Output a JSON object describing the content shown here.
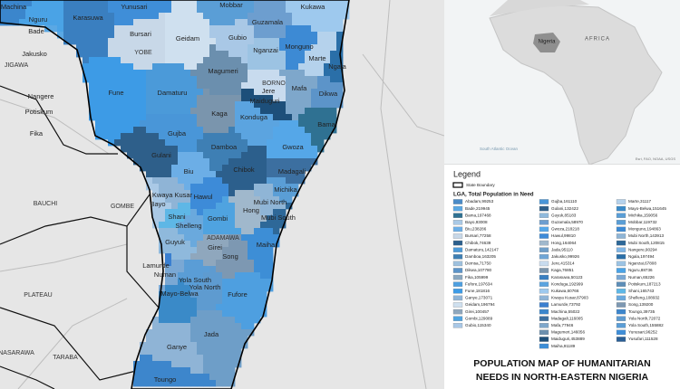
{
  "map": {
    "lga_labels": [
      "Machina",
      "Yunusari",
      "Mobbar",
      "Kukawa",
      "Nguru",
      "Karasuwa",
      "Bade",
      "Guzamala",
      "Bursari",
      "Geidam",
      "Gubio",
      "Jakusko",
      "Nganzai",
      "Monguno",
      "Marte",
      "Ngala",
      "Magumeri",
      "Jere",
      "Mafa",
      "Maiduguri",
      "Nangere",
      "Fune",
      "Damaturu",
      "Dikwa",
      "Potiskum",
      "Kaga",
      "Konduga",
      "Bama",
      "Fika",
      "Gujba",
      "Damboa",
      "Gwoza",
      "Gulani",
      "Chibok",
      "Biu",
      "Madagali",
      "Kwaya Kusar",
      "Michika",
      "Bayo",
      "Hawul",
      "Shani",
      "Gombi",
      "Hong",
      "Mubi North",
      "Mubi South",
      "Shelleng",
      "Guyuk",
      "Maiha",
      "Girei",
      "Song",
      "Lamurde",
      "Numan",
      "Yola South",
      "Yola North",
      "Mayo-Belwa",
      "Fufore",
      "Jada",
      "Ganye",
      "Toungo"
    ],
    "state_labels": [
      "YOBE",
      "JIGAWA",
      "BORNO",
      "BAUCHI",
      "GOMBE",
      "ADAMAWA",
      "PLATEAU",
      "NASARAWA",
      "TARABA"
    ]
  },
  "inset": {
    "country": "Nigeria",
    "continent": "AFRICA",
    "ocean": "South Atlantic Ocean",
    "credit": "Esri, FAO, NOAA, USGS"
  },
  "legend": {
    "title": "Legend",
    "boundary": "State Boundary",
    "subtitle": "LGA, Total Population in Need",
    "columns": [
      [
        {
          "label": "Abadam,99253",
          "color": "#4a8bc8"
        },
        {
          "label": "Bade,219945",
          "color": "#5aa8e4"
        },
        {
          "label": "Bama,197468",
          "color": "#2f7192"
        },
        {
          "label": "Bayo,93008",
          "color": "#aac9e6"
        },
        {
          "label": "Biu,238286",
          "color": "#6caee6"
        },
        {
          "label": "Bursari,77258",
          "color": "#c8d8e8"
        },
        {
          "label": "Chibok,74639",
          "color": "#2c5f8c"
        },
        {
          "label": "Damaturu,142147",
          "color": "#4b9ad9"
        },
        {
          "label": "Damboa,163205",
          "color": "#3e7fb4"
        },
        {
          "label": "Demsa,71750",
          "color": "#9ec0dd"
        },
        {
          "label": "Dikwa,107780",
          "color": "#5c94c9"
        },
        {
          "label": "Fika,105999",
          "color": "#8aa8c0"
        },
        {
          "label": "Fufore,197634",
          "color": "#4e9fe0"
        },
        {
          "label": "Fune,181816",
          "color": "#3d9be6"
        },
        {
          "label": "Ganye,173071",
          "color": "#8fb4d6"
        },
        {
          "label": "Geidam,196794",
          "color": "#cfe0ef"
        },
        {
          "label": "Girei,100457",
          "color": "#8fa7bd"
        },
        {
          "label": "Gombi,129089",
          "color": "#4fa3e0"
        },
        {
          "label": "Gubio,115340",
          "color": "#a9c8e6"
        }
      ],
      [
        {
          "label": "Gujba,161110",
          "color": "#4996d8"
        },
        {
          "label": "Gulani,132422",
          "color": "#2e5f8a"
        },
        {
          "label": "Guyuk,85183",
          "color": "#8fb9dc"
        },
        {
          "label": "Guzamala,58970",
          "color": "#6d9ecf"
        },
        {
          "label": "Gwoza,218218",
          "color": "#55a7e8"
        },
        {
          "label": "Hawul,99810",
          "color": "#3d8bd8"
        },
        {
          "label": "Hong,164064",
          "color": "#a0b8cc"
        },
        {
          "label": "Jada,95110",
          "color": "#6e9ec8"
        },
        {
          "label": "Jakusko,99926",
          "color": "#6fa6d6"
        },
        {
          "label": "Jere,415314",
          "color": "#c8dbee"
        },
        {
          "label": "Kaga,76851",
          "color": "#7a95ad"
        },
        {
          "label": "Karasuwa,50123",
          "color": "#3a7fc0"
        },
        {
          "label": "Konduga,192999",
          "color": "#5ba4e0"
        },
        {
          "label": "Kukawa,60766",
          "color": "#9ec9ee"
        },
        {
          "label": "Kwaya Kusar,87903",
          "color": "#8fb4d6"
        },
        {
          "label": "Lamurde,73792",
          "color": "#3a7fd0"
        },
        {
          "label": "Machina,55022",
          "color": "#3b86cc"
        },
        {
          "label": "Madagali,116005",
          "color": "#3c6fa0"
        },
        {
          "label": "Mafa,77946",
          "color": "#7ea7cb"
        },
        {
          "label": "Magumeri,146056",
          "color": "#6b8fae"
        },
        {
          "label": "Maiduguri,453889",
          "color": "#1d4f7a"
        },
        {
          "label": "Maiha,91189",
          "color": "#3d8ed6"
        }
      ],
      [
        {
          "label": "Marte,31117",
          "color": "#b5d2ec"
        },
        {
          "label": "Mayo-Belwa,151645",
          "color": "#3a8ac8"
        },
        {
          "label": "Michika,159056",
          "color": "#5a9ed6"
        },
        {
          "label": "Mobbar,119732",
          "color": "#5a9ed6"
        },
        {
          "label": "Monguno,194863",
          "color": "#3d8ad4"
        },
        {
          "label": "Mubi North,143913",
          "color": "#8fb5d6"
        },
        {
          "label": "Mubi South,120815",
          "color": "#2e6898"
        },
        {
          "label": "Nangere,90294",
          "color": "#7fb6e6"
        },
        {
          "label": "Ngala,197494",
          "color": "#2a6fa8"
        },
        {
          "label": "Nganzai,67808",
          "color": "#9cc3e3"
        },
        {
          "label": "Nguru,88736",
          "color": "#4aa3e6"
        },
        {
          "label": "Numan,65226",
          "color": "#7aa8d4"
        },
        {
          "label": "Potiskum,187213",
          "color": "#5d8eb8"
        },
        {
          "label": "Shani,165743",
          "color": "#5eb7e6"
        },
        {
          "label": "Shelleng,108932",
          "color": "#6aa9dd"
        },
        {
          "label": "Song,139200",
          "color": "#7d98b2"
        },
        {
          "label": "Toungo,39735",
          "color": "#3d86cc"
        },
        {
          "label": "Yola North,72072",
          "color": "#5e9bd0"
        },
        {
          "label": "Yola South,155882",
          "color": "#5a9dd6"
        },
        {
          "label": "Yunusari,96252",
          "color": "#3f8ed8"
        },
        {
          "label": "Yusufari,111528",
          "color": "#2a5f96"
        }
      ]
    ]
  },
  "title": [
    "POPULATION MAP OF HUMANITARIAN",
    "NEEDS IN NORTH-EASTERN NIGERIA"
  ]
}
